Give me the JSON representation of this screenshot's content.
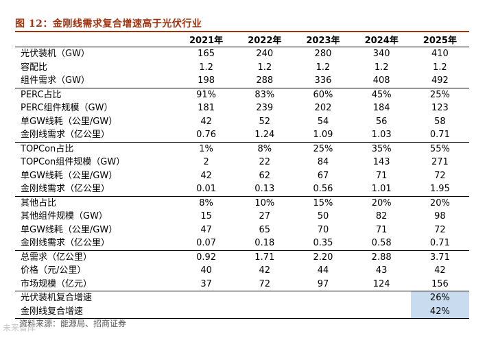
{
  "title": "图 12：金刚线需求复合增速高于光伏行业",
  "headers": [
    "",
    "2021年",
    "2022年",
    "2023年",
    "2024年",
    "2025年"
  ],
  "sections": [
    {
      "rows": [
        {
          "label": "光伏装机（GW）",
          "values": [
            "165",
            "240",
            "280",
            "340",
            "410"
          ]
        },
        {
          "label": "容配比",
          "values": [
            "1.2",
            "1.2",
            "1.2",
            "1.2",
            "1.2"
          ]
        },
        {
          "label": "组件需求（GW）",
          "values": [
            "198",
            "288",
            "336",
            "408",
            "492"
          ]
        }
      ]
    },
    {
      "rows": [
        {
          "label": "PERC占比",
          "values": [
            "91%",
            "83%",
            "60%",
            "45%",
            "25%"
          ]
        },
        {
          "label": "PERC组件规模（GW）",
          "values": [
            "181",
            "239",
            "202",
            "184",
            "123"
          ]
        },
        {
          "label": "单GW线耗（公里/GW）",
          "values": [
            "42",
            "52",
            "54",
            "56",
            "58"
          ]
        },
        {
          "label": "金刚线需求（亿公里）",
          "values": [
            "0.76",
            "1.24",
            "1.09",
            "1.03",
            "0.71"
          ]
        }
      ]
    },
    {
      "rows": [
        {
          "label": "TOPCon占比",
          "values": [
            "1%",
            "8%",
            "25%",
            "35%",
            "55%"
          ]
        },
        {
          "label": "TOPCon组件规模（GW）",
          "values": [
            "2",
            "22",
            "84",
            "143",
            "271"
          ]
        },
        {
          "label": "单GW线耗（公里/GW）",
          "values": [
            "42",
            "62",
            "67",
            "71",
            "72"
          ]
        },
        {
          "label": "金刚线需求（亿公里）",
          "values": [
            "0.01",
            "0.13",
            "0.56",
            "1.01",
            "1.95"
          ]
        }
      ]
    },
    {
      "rows": [
        {
          "label": "其他占比",
          "values": [
            "8%",
            "10%",
            "15%",
            "20%",
            "20%"
          ]
        },
        {
          "label": "其他组件规模（GW）",
          "values": [
            "15",
            "27",
            "50",
            "82",
            "98"
          ]
        },
        {
          "label": "单GW线耗（公里/GW）",
          "values": [
            "47",
            "65",
            "70",
            "71",
            "72"
          ]
        },
        {
          "label": "金刚线需求（亿公里）",
          "values": [
            "0.07",
            "0.18",
            "0.35",
            "0.58",
            "0.71"
          ]
        }
      ]
    },
    {
      "rows": [
        {
          "label": "总需求（亿公里）",
          "values": [
            "0.92",
            "1.71",
            "2.20",
            "2.88",
            "3.71"
          ]
        },
        {
          "label": "价格（元/公里）",
          "values": [
            "40",
            "42",
            "44",
            "43",
            "42"
          ]
        },
        {
          "label": "市场规模（亿元）",
          "values": [
            "37",
            "72",
            "97",
            "124",
            "156"
          ]
        }
      ]
    },
    {
      "rows": [
        {
          "label": "光伏装机复合增速",
          "values": [
            "",
            "",
            "",
            "",
            "26%"
          ]
        },
        {
          "label": "金刚线复合增速",
          "values": [
            "",
            "",
            "",
            "",
            "42%"
          ]
        }
      ]
    }
  ],
  "highlight_color": "#c9dcef",
  "source": "资料来源：能源局、招商证券",
  "watermark": "未来智库"
}
